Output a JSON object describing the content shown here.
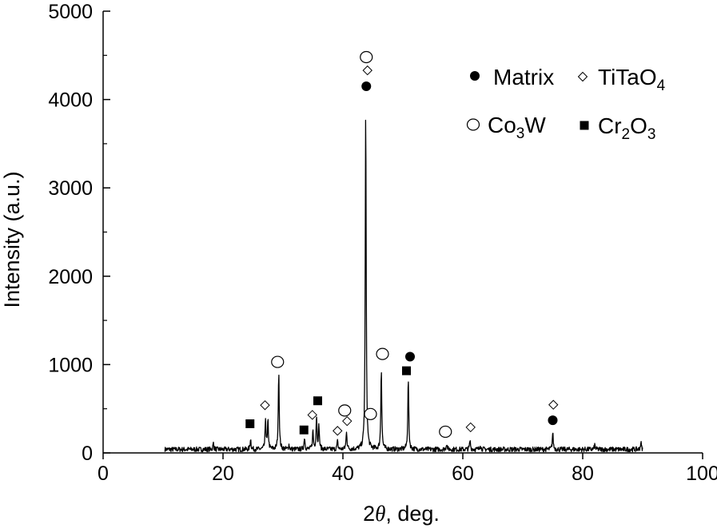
{
  "chart_data": {
    "type": "line",
    "title": "",
    "xlabel": {
      "prefix": "2",
      "theta": "θ",
      "suffix": ", deg."
    },
    "ylabel": "Intensity (a.u.)",
    "xlim": [
      0,
      100
    ],
    "ylim": [
      0,
      5000
    ],
    "x_ticks": [
      "0",
      "20",
      "40",
      "60",
      "80",
      "100"
    ],
    "y_ticks": [
      "0",
      "1000",
      "2000",
      "3000",
      "4000",
      "5000"
    ],
    "grid": false,
    "legend_position": "top-right",
    "baseline": 40,
    "peaks": [
      {
        "x": 18.4,
        "y": 110
      },
      {
        "x": 24.6,
        "y": 160
      },
      {
        "x": 27.1,
        "y": 380
      },
      {
        "x": 27.5,
        "y": 360
      },
      {
        "x": 29.3,
        "y": 940
      },
      {
        "x": 31.0,
        "y": 90
      },
      {
        "x": 33.6,
        "y": 180
      },
      {
        "x": 35.0,
        "y": 250
      },
      {
        "x": 35.6,
        "y": 420
      },
      {
        "x": 36.0,
        "y": 300
      },
      {
        "x": 39.1,
        "y": 130
      },
      {
        "x": 40.6,
        "y": 250
      },
      {
        "x": 43.8,
        "y": 3930
      },
      {
        "x": 46.4,
        "y": 970
      },
      {
        "x": 50.9,
        "y": 850
      },
      {
        "x": 57.3,
        "y": 110
      },
      {
        "x": 61.2,
        "y": 140
      },
      {
        "x": 62.9,
        "y": 100
      },
      {
        "x": 75.0,
        "y": 230
      },
      {
        "x": 82.0,
        "y": 90
      },
      {
        "x": 89.7,
        "y": 120
      }
    ],
    "series": [
      {
        "name": "Matrix",
        "symbol": "filled-circle",
        "points": [
          [
            43.9,
            4150
          ],
          [
            51.2,
            1090
          ],
          [
            75.0,
            370
          ]
        ]
      },
      {
        "name": "TiTaO",
        "sub": "4",
        "symbol": "open-diamond",
        "points": [
          [
            27.0,
            540
          ],
          [
            34.9,
            430
          ],
          [
            39.1,
            250
          ],
          [
            40.7,
            360
          ],
          [
            44.1,
            4330
          ],
          [
            61.3,
            290
          ],
          [
            75.1,
            545
          ]
        ]
      },
      {
        "name": "Co",
        "sub": "3",
        "name_tail": "W",
        "symbol": "open-circle",
        "points": [
          [
            29.1,
            1030
          ],
          [
            40.3,
            480
          ],
          [
            43.9,
            4480
          ],
          [
            44.6,
            440
          ],
          [
            46.6,
            1120
          ],
          [
            57.1,
            240
          ]
        ]
      },
      {
        "name": "Cr",
        "sub": "2",
        "name_tail": "O",
        "sub2": "3",
        "symbol": "filled-square",
        "points": [
          [
            24.5,
            330
          ],
          [
            33.5,
            260
          ],
          [
            35.8,
            590
          ],
          [
            50.6,
            930
          ]
        ]
      }
    ]
  }
}
